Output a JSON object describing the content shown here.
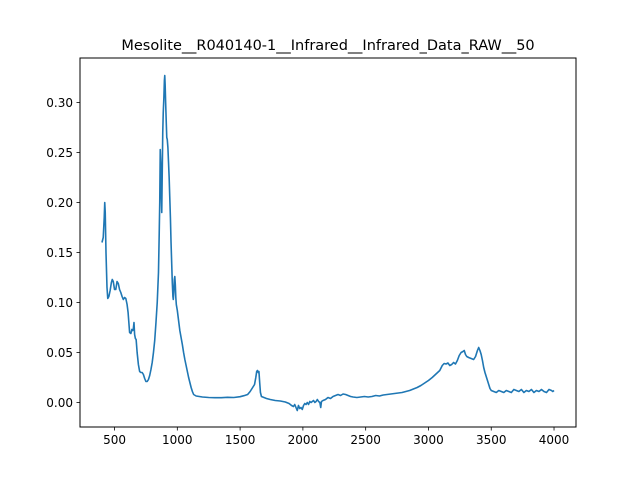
{
  "chart_data": {
    "type": "line",
    "title": "Mesolite__R040140-1__Infrared__Infrared_Data_RAW__50",
    "xlabel": "",
    "ylabel": "",
    "xlim": [
      225,
      4175
    ],
    "ylim": [
      -0.0245,
      0.3445
    ],
    "xticks": [
      500,
      1000,
      1500,
      2000,
      2500,
      3000,
      3500,
      4000
    ],
    "xtick_labels": [
      "500",
      "1000",
      "1500",
      "2000",
      "2500",
      "3000",
      "3500",
      "4000"
    ],
    "yticks": [
      0.0,
      0.05,
      0.1,
      0.15,
      0.2,
      0.25,
      0.3
    ],
    "ytick_labels": [
      "0.00",
      "0.05",
      "0.10",
      "0.15",
      "0.20",
      "0.25",
      "0.30"
    ],
    "grid": false,
    "series": [
      {
        "color": "#1f77b4",
        "points": [
          [
            400,
            0.16
          ],
          [
            410,
            0.165
          ],
          [
            418,
            0.185
          ],
          [
            422,
            0.2
          ],
          [
            426,
            0.19
          ],
          [
            432,
            0.15
          ],
          [
            440,
            0.115
          ],
          [
            446,
            0.104
          ],
          [
            455,
            0.106
          ],
          [
            465,
            0.112
          ],
          [
            475,
            0.12
          ],
          [
            482,
            0.123
          ],
          [
            490,
            0.121
          ],
          [
            500,
            0.113
          ],
          [
            510,
            0.113
          ],
          [
            520,
            0.121
          ],
          [
            530,
            0.119
          ],
          [
            540,
            0.113
          ],
          [
            550,
            0.11
          ],
          [
            560,
            0.106
          ],
          [
            570,
            0.103
          ],
          [
            580,
            0.105
          ],
          [
            590,
            0.104
          ],
          [
            600,
            0.098
          ],
          [
            608,
            0.09
          ],
          [
            614,
            0.08
          ],
          [
            620,
            0.07
          ],
          [
            630,
            0.069
          ],
          [
            638,
            0.073
          ],
          [
            645,
            0.072
          ],
          [
            650,
            0.074
          ],
          [
            655,
            0.08
          ],
          [
            660,
            0.068
          ],
          [
            666,
            0.064
          ],
          [
            672,
            0.063
          ],
          [
            680,
            0.05
          ],
          [
            690,
            0.038
          ],
          [
            700,
            0.031
          ],
          [
            710,
            0.03
          ],
          [
            720,
            0.03
          ],
          [
            730,
            0.028
          ],
          [
            740,
            0.024
          ],
          [
            750,
            0.021
          ],
          [
            760,
            0.021
          ],
          [
            770,
            0.023
          ],
          [
            780,
            0.027
          ],
          [
            790,
            0.033
          ],
          [
            800,
            0.04
          ],
          [
            810,
            0.05
          ],
          [
            820,
            0.062
          ],
          [
            830,
            0.08
          ],
          [
            840,
            0.1
          ],
          [
            850,
            0.13
          ],
          [
            856,
            0.17
          ],
          [
            860,
            0.2
          ],
          [
            864,
            0.253
          ],
          [
            868,
            0.24
          ],
          [
            872,
            0.21
          ],
          [
            876,
            0.19
          ],
          [
            880,
            0.23
          ],
          [
            884,
            0.27
          ],
          [
            888,
            0.29
          ],
          [
            893,
            0.305
          ],
          [
            897,
            0.322
          ],
          [
            900,
            0.327
          ],
          [
            903,
            0.318
          ],
          [
            907,
            0.3
          ],
          [
            912,
            0.28
          ],
          [
            916,
            0.265
          ],
          [
            920,
            0.263
          ],
          [
            925,
            0.255
          ],
          [
            930,
            0.24
          ],
          [
            935,
            0.225
          ],
          [
            940,
            0.205
          ],
          [
            945,
            0.185
          ],
          [
            950,
            0.16
          ],
          [
            955,
            0.14
          ],
          [
            960,
            0.12
          ],
          [
            965,
            0.106
          ],
          [
            968,
            0.103
          ],
          [
            972,
            0.11
          ],
          [
            976,
            0.123
          ],
          [
            980,
            0.126
          ],
          [
            984,
            0.118
          ],
          [
            988,
            0.105
          ],
          [
            992,
            0.098
          ],
          [
            1000,
            0.092
          ],
          [
            1010,
            0.082
          ],
          [
            1020,
            0.072
          ],
          [
            1030,
            0.065
          ],
          [
            1040,
            0.058
          ],
          [
            1050,
            0.05
          ],
          [
            1060,
            0.043
          ],
          [
            1070,
            0.037
          ],
          [
            1080,
            0.031
          ],
          [
            1090,
            0.025
          ],
          [
            1100,
            0.02
          ],
          [
            1110,
            0.015
          ],
          [
            1120,
            0.011
          ],
          [
            1130,
            0.008
          ],
          [
            1150,
            0.0065
          ],
          [
            1200,
            0.0055
          ],
          [
            1250,
            0.005
          ],
          [
            1300,
            0.0048
          ],
          [
            1350,
            0.0048
          ],
          [
            1400,
            0.0052
          ],
          [
            1450,
            0.005
          ],
          [
            1500,
            0.0058
          ],
          [
            1530,
            0.0068
          ],
          [
            1560,
            0.008
          ],
          [
            1580,
            0.011
          ],
          [
            1600,
            0.015
          ],
          [
            1615,
            0.018
          ],
          [
            1625,
            0.025
          ],
          [
            1632,
            0.031
          ],
          [
            1638,
            0.032
          ],
          [
            1645,
            0.03
          ],
          [
            1650,
            0.031
          ],
          [
            1656,
            0.02
          ],
          [
            1662,
            0.01
          ],
          [
            1670,
            0.006
          ],
          [
            1690,
            0.005
          ],
          [
            1710,
            0.004
          ],
          [
            1740,
            0.003
          ],
          [
            1780,
            0.002
          ],
          [
            1820,
            0.0015
          ],
          [
            1860,
            0.0005
          ],
          [
            1890,
            -0.001
          ],
          [
            1910,
            -0.003
          ],
          [
            1925,
            -0.004
          ],
          [
            1935,
            -0.002
          ],
          [
            1945,
            -0.005
          ],
          [
            1955,
            -0.008
          ],
          [
            1965,
            -0.003
          ],
          [
            1975,
            -0.006
          ],
          [
            1985,
            -0.005
          ],
          [
            1995,
            -0.007
          ],
          [
            2005,
            -0.003
          ],
          [
            2015,
            -0.001
          ],
          [
            2025,
            -0.002
          ],
          [
            2035,
            0.0
          ],
          [
            2045,
            -0.002
          ],
          [
            2055,
            0.001
          ],
          [
            2065,
            0.0
          ],
          [
            2075,
            0.001
          ],
          [
            2085,
            0.002
          ],
          [
            2095,
            0.0
          ],
          [
            2105,
            0.001
          ],
          [
            2115,
            0.003
          ],
          [
            2125,
            0.001
          ],
          [
            2135,
            0.0
          ],
          [
            2142,
            -0.005
          ],
          [
            2148,
            0.001
          ],
          [
            2160,
            0.002
          ],
          [
            2180,
            0.003
          ],
          [
            2200,
            0.005
          ],
          [
            2220,
            0.004
          ],
          [
            2240,
            0.006
          ],
          [
            2260,
            0.007
          ],
          [
            2280,
            0.008
          ],
          [
            2300,
            0.007
          ],
          [
            2320,
            0.0085
          ],
          [
            2340,
            0.008
          ],
          [
            2360,
            0.007
          ],
          [
            2380,
            0.006
          ],
          [
            2400,
            0.0055
          ],
          [
            2430,
            0.005
          ],
          [
            2460,
            0.0055
          ],
          [
            2490,
            0.006
          ],
          [
            2520,
            0.0055
          ],
          [
            2550,
            0.006
          ],
          [
            2580,
            0.007
          ],
          [
            2610,
            0.0065
          ],
          [
            2640,
            0.0075
          ],
          [
            2670,
            0.008
          ],
          [
            2700,
            0.0085
          ],
          [
            2730,
            0.009
          ],
          [
            2760,
            0.0095
          ],
          [
            2790,
            0.01
          ],
          [
            2820,
            0.011
          ],
          [
            2850,
            0.012
          ],
          [
            2880,
            0.0135
          ],
          [
            2910,
            0.015
          ],
          [
            2940,
            0.017
          ],
          [
            2970,
            0.0195
          ],
          [
            3000,
            0.022
          ],
          [
            3030,
            0.025
          ],
          [
            3060,
            0.0285
          ],
          [
            3090,
            0.032
          ],
          [
            3110,
            0.037
          ],
          [
            3125,
            0.039
          ],
          [
            3140,
            0.0385
          ],
          [
            3155,
            0.0395
          ],
          [
            3170,
            0.037
          ],
          [
            3185,
            0.038
          ],
          [
            3200,
            0.04
          ],
          [
            3215,
            0.0385
          ],
          [
            3230,
            0.042
          ],
          [
            3245,
            0.047
          ],
          [
            3260,
            0.05
          ],
          [
            3275,
            0.051
          ],
          [
            3285,
            0.052
          ],
          [
            3295,
            0.048
          ],
          [
            3305,
            0.046
          ],
          [
            3320,
            0.045
          ],
          [
            3340,
            0.044
          ],
          [
            3360,
            0.043
          ],
          [
            3375,
            0.046
          ],
          [
            3390,
            0.052
          ],
          [
            3400,
            0.055
          ],
          [
            3410,
            0.052
          ],
          [
            3420,
            0.048
          ],
          [
            3430,
            0.042
          ],
          [
            3440,
            0.035
          ],
          [
            3450,
            0.03
          ],
          [
            3460,
            0.026
          ],
          [
            3470,
            0.022
          ],
          [
            3480,
            0.018
          ],
          [
            3490,
            0.014
          ],
          [
            3500,
            0.012
          ],
          [
            3520,
            0.011
          ],
          [
            3540,
            0.01
          ],
          [
            3560,
            0.012
          ],
          [
            3580,
            0.011
          ],
          [
            3600,
            0.01
          ],
          [
            3620,
            0.012
          ],
          [
            3640,
            0.011
          ],
          [
            3660,
            0.01
          ],
          [
            3680,
            0.013
          ],
          [
            3700,
            0.012
          ],
          [
            3720,
            0.011
          ],
          [
            3740,
            0.013
          ],
          [
            3760,
            0.01
          ],
          [
            3780,
            0.012
          ],
          [
            3800,
            0.011
          ],
          [
            3820,
            0.013
          ],
          [
            3840,
            0.01
          ],
          [
            3860,
            0.012
          ],
          [
            3880,
            0.011
          ],
          [
            3900,
            0.013
          ],
          [
            3920,
            0.011
          ],
          [
            3940,
            0.01
          ],
          [
            3960,
            0.013
          ],
          [
            3980,
            0.012
          ],
          [
            3990,
            0.011
          ],
          [
            4000,
            0.012
          ]
        ]
      }
    ]
  }
}
